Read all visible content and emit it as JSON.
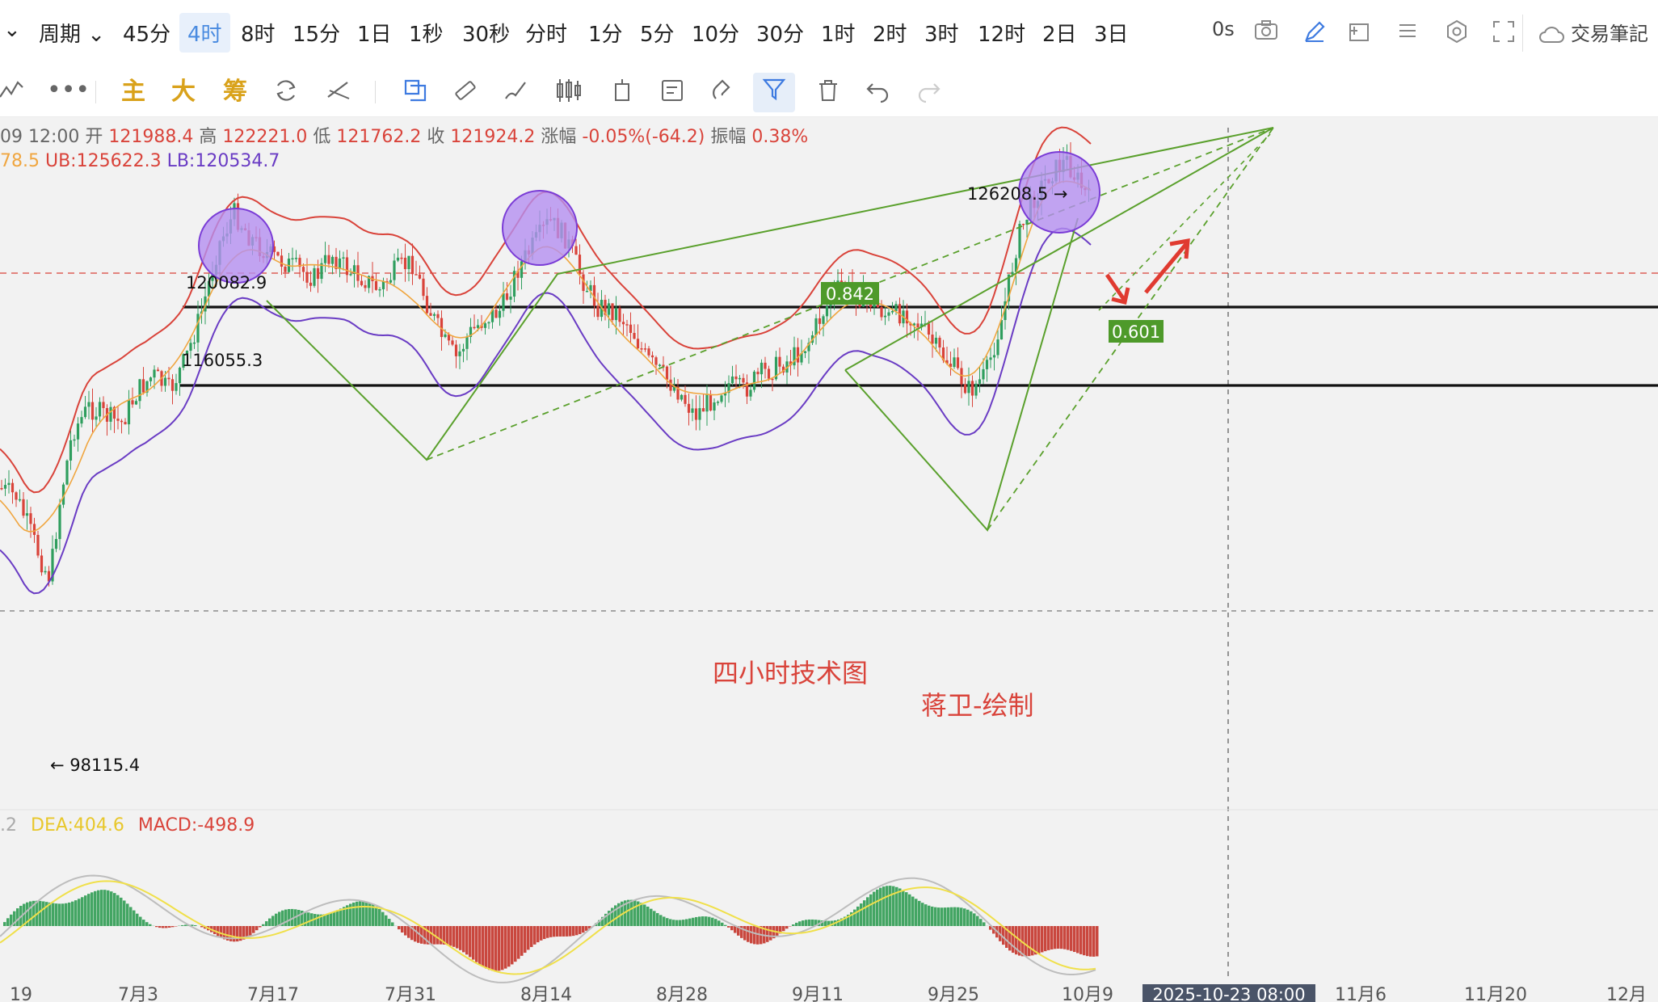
{
  "toolbar": {
    "period_label": "周期",
    "timeframes": [
      "45分",
      "4时",
      "8时",
      "15分",
      "1日",
      "1秒",
      "30秒",
      "分时",
      "1分",
      "5分",
      "10分",
      "30分",
      "1时",
      "2时",
      "3时",
      "12时",
      "2日",
      "3日"
    ],
    "active_timeframe": "4时",
    "countdown": "0s",
    "notes_label": "交易筆記"
  },
  "drawing_toolbar": {
    "indicator_labels": [
      "主",
      "大",
      "筹"
    ]
  },
  "ohlc": {
    "time": "09 12:00",
    "open_label": "开",
    "open": "121988.4",
    "high_label": "高",
    "high": "122221.0",
    "low_label": "低",
    "low": "121762.2",
    "close_label": "收",
    "close": "121924.2",
    "change_label": "涨幅",
    "change": "-0.05%(-64.2)",
    "amplitude_label": "振幅",
    "amplitude": "0.38%"
  },
  "bands": {
    "mid_fragment": "78.5",
    "ub": "UB:125622.3",
    "lb": "LB:120534.7"
  },
  "annotations": {
    "high_1": "120082.9",
    "level_2": "116055.3",
    "peak": "126208.5 →",
    "low": "← 98115.4",
    "fib_1": "0.842",
    "fib_2": "0.601",
    "title": "四小时技术图",
    "author": "蒋卫-绘制"
  },
  "macd": {
    "dif_fragment": ".2",
    "dea": "DEA:404.6",
    "macd": "MACD:-498.9"
  },
  "x_axis": {
    "labels": [
      "19",
      "7月3",
      "7月17",
      "7月31",
      "8月14",
      "8月28",
      "9月11",
      "9月25",
      "10月9",
      "11月6",
      "11月20",
      "12月"
    ],
    "crosshair_label": "2025-10-23 08:00"
  },
  "colors": {
    "accent": "#4a8be0",
    "up": "#2f9e5e",
    "down": "#d9433a",
    "ub": "#d9433a",
    "lb": "#6a3cc4",
    "mid": "#f0a640",
    "trend": "#5aa02c"
  }
}
